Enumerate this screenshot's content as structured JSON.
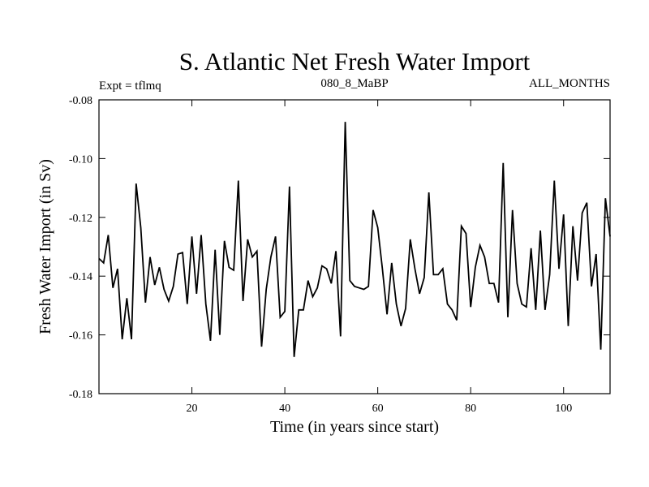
{
  "chart_data": {
    "type": "line",
    "title": "S. Atlantic Net Fresh Water Import",
    "subtitle_left": "Expt = tflmq",
    "subtitle_center": "080_8_MaBP",
    "subtitle_right": "ALL_MONTHS",
    "xlabel": "Time (in years since start)",
    "ylabel": "Fresh Water Import (in Sv)",
    "xlim": [
      0,
      110
    ],
    "ylim": [
      -0.18,
      -0.08
    ],
    "xticks": [
      20,
      40,
      60,
      80,
      100
    ],
    "yticks": [
      -0.18,
      -0.16,
      -0.14,
      -0.12,
      -0.1,
      -0.08
    ],
    "ytick_labels": [
      "-0.18",
      "-0.16",
      "-0.14",
      "-0.12",
      "-0.10",
      "-0.08"
    ],
    "series": [
      {
        "name": "fresh_water_import",
        "x": [
          0,
          1,
          2,
          3,
          4,
          5,
          6,
          7,
          8,
          9,
          10,
          11,
          12,
          13,
          14,
          15,
          16,
          17,
          18,
          19,
          20,
          21,
          22,
          23,
          24,
          25,
          26,
          27,
          28,
          29,
          30,
          31,
          32,
          33,
          34,
          35,
          36,
          37,
          38,
          39,
          40,
          41,
          42,
          43,
          44,
          45,
          46,
          47,
          48,
          49,
          50,
          51,
          52,
          53,
          54,
          55,
          56,
          57,
          58,
          59,
          60,
          61,
          62,
          63,
          64,
          65,
          66,
          67,
          68,
          69,
          70,
          71,
          72,
          73,
          74,
          75,
          76,
          77,
          78,
          79,
          80,
          81,
          82,
          83,
          84,
          85,
          86,
          87,
          88,
          89,
          90,
          91,
          92,
          93,
          94,
          95,
          96,
          97,
          98,
          99,
          100,
          101,
          102,
          103,
          104,
          105,
          106,
          107,
          108,
          109,
          110
        ],
        "values": [
          -0.134,
          -0.1355,
          -0.126,
          -0.144,
          -0.1375,
          -0.1615,
          -0.1475,
          -0.1615,
          -0.1085,
          -0.1235,
          -0.149,
          -0.1335,
          -0.143,
          -0.137,
          -0.1445,
          -0.1485,
          -0.1435,
          -0.1325,
          -0.132,
          -0.1495,
          -0.1265,
          -0.146,
          -0.126,
          -0.1495,
          -0.162,
          -0.131,
          -0.16,
          -0.128,
          -0.137,
          -0.138,
          -0.1075,
          -0.1485,
          -0.1275,
          -0.1335,
          -0.1315,
          -0.164,
          -0.1445,
          -0.1335,
          -0.1265,
          -0.154,
          -0.152,
          -0.1095,
          -0.1675,
          -0.1515,
          -0.1515,
          -0.1415,
          -0.147,
          -0.144,
          -0.1365,
          -0.1375,
          -0.1425,
          -0.1315,
          -0.1605,
          -0.0875,
          -0.1415,
          -0.1435,
          -0.144,
          -0.1445,
          -0.1435,
          -0.1175,
          -0.1235,
          -0.1375,
          -0.153,
          -0.1355,
          -0.1495,
          -0.157,
          -0.151,
          -0.1275,
          -0.1375,
          -0.146,
          -0.1405,
          -0.1115,
          -0.1395,
          -0.1395,
          -0.1375,
          -0.1495,
          -0.1515,
          -0.155,
          -0.123,
          -0.1255,
          -0.1505,
          -0.137,
          -0.1295,
          -0.1335,
          -0.1425,
          -0.1425,
          -0.149,
          -0.1015,
          -0.154,
          -0.1175,
          -0.1425,
          -0.1495,
          -0.1505,
          -0.1305,
          -0.1515,
          -0.1245,
          -0.1515,
          -0.1395,
          -0.1075,
          -0.1375,
          -0.119,
          -0.157,
          -0.123,
          -0.1415,
          -0.1185,
          -0.115,
          -0.1435,
          -0.1325,
          -0.165,
          -0.1135,
          -0.1265
        ]
      }
    ]
  }
}
